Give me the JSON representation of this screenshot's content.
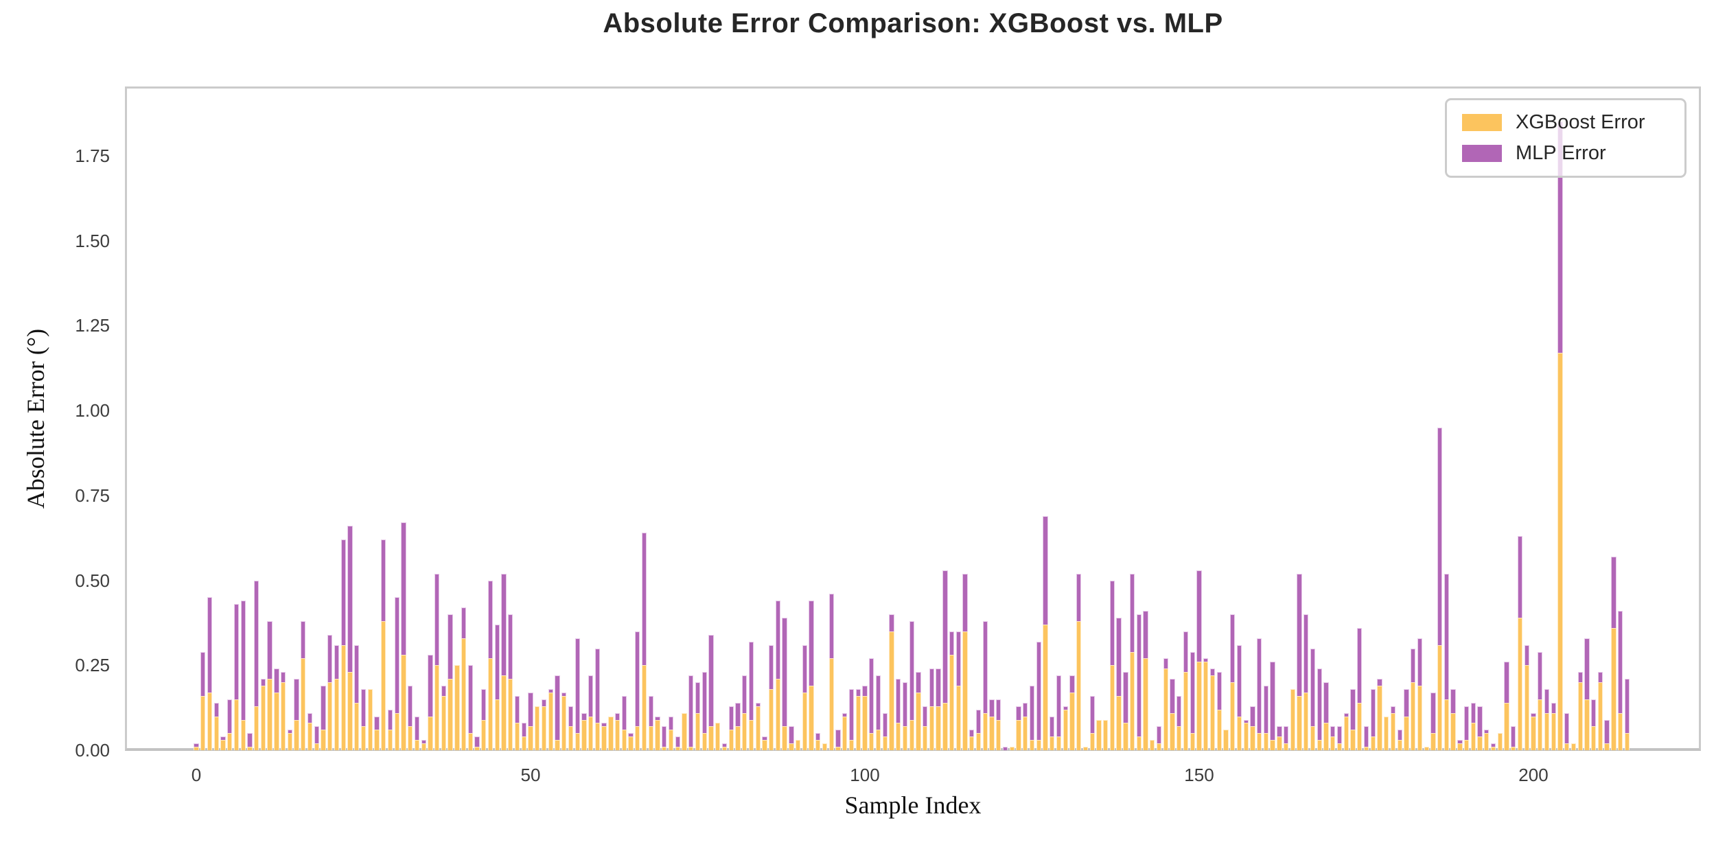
{
  "chart_data": {
    "type": "bar",
    "title": "Absolute Error Comparison: XGBoost vs. MLP",
    "xlabel": "Sample Index",
    "ylabel": "Absolute Error (°)",
    "grid": false,
    "legend_position": "upper right",
    "n_samples": 215,
    "x_start": 0,
    "xlim": [
      -11,
      225
    ],
    "ylim": [
      0,
      1.95
    ],
    "xticks": [
      0,
      50,
      100,
      150,
      200
    ],
    "yticks": [
      0.0,
      0.25,
      0.5,
      0.75,
      1.0,
      1.25,
      1.5,
      1.75
    ],
    "ytick_labels": [
      "0.00",
      "0.25",
      "0.50",
      "0.75",
      "1.00",
      "1.25",
      "1.50",
      "1.75"
    ],
    "bar_style": "overlaid (MLP behind, XGBoost in front)",
    "series": [
      {
        "name": "XGBoost Error",
        "color": "#fcc45e",
        "edge_color": "#ffeac3",
        "values": [
          0.01,
          0.16,
          0.17,
          0.1,
          0.03,
          0.05,
          0.15,
          0.09,
          0.01,
          0.13,
          0.19,
          0.21,
          0.17,
          0.2,
          0.05,
          0.09,
          0.27,
          0.08,
          0.02,
          0.06,
          0.2,
          0.21,
          0.31,
          0.23,
          0.14,
          0.07,
          0.18,
          0.06,
          0.38,
          0.06,
          0.11,
          0.28,
          0.07,
          0.03,
          0.02,
          0.1,
          0.25,
          0.16,
          0.21,
          0.25,
          0.33,
          0.05,
          0.01,
          0.09,
          0.27,
          0.15,
          0.22,
          0.21,
          0.08,
          0.04,
          0.07,
          0.13,
          0.13,
          0.17,
          0.03,
          0.16,
          0.07,
          0.05,
          0.09,
          0.1,
          0.08,
          0.07,
          0.1,
          0.09,
          0.06,
          0.04,
          0.07,
          0.25,
          0.07,
          0.09,
          0.01,
          0.06,
          0.01,
          0.11,
          0.01,
          0.11,
          0.05,
          0.07,
          0.08,
          0.01,
          0.06,
          0.07,
          0.11,
          0.09,
          0.13,
          0.03,
          0.18,
          0.21,
          0.07,
          0.02,
          0.03,
          0.17,
          0.19,
          0.03,
          0.02,
          0.27,
          0.01,
          0.1,
          0.03,
          0.16,
          0.16,
          0.05,
          0.06,
          0.04,
          0.35,
          0.08,
          0.07,
          0.09,
          0.17,
          0.07,
          0.13,
          0.13,
          0.14,
          0.28,
          0.19,
          0.35,
          0.04,
          0.05,
          0.11,
          0.1,
          0.09,
          0.0,
          0.01,
          0.09,
          0.1,
          0.03,
          0.03,
          0.37,
          0.04,
          0.04,
          0.12,
          0.17,
          0.38,
          0.01,
          0.05,
          0.09,
          0.09,
          0.25,
          0.16,
          0.08,
          0.29,
          0.04,
          0.27,
          0.03,
          0.02,
          0.24,
          0.11,
          0.07,
          0.23,
          0.05,
          0.26,
          0.26,
          0.22,
          0.12,
          0.06,
          0.2,
          0.1,
          0.08,
          0.07,
          0.05,
          0.05,
          0.03,
          0.04,
          0.02,
          0.18,
          0.16,
          0.17,
          0.07,
          0.03,
          0.08,
          0.04,
          0.02,
          0.1,
          0.06,
          0.14,
          0.01,
          0.04,
          0.19,
          0.1,
          0.11,
          0.03,
          0.1,
          0.2,
          0.19,
          0.01,
          0.05,
          0.31,
          0.15,
          0.11,
          0.02,
          0.03,
          0.08,
          0.04,
          0.05,
          0.01,
          0.05,
          0.14,
          0.01,
          0.39,
          0.25,
          0.1,
          0.15,
          0.11,
          0.11,
          1.17,
          0.02,
          0.02,
          0.2,
          0.15,
          0.07,
          0.2,
          0.02,
          0.36,
          0.11,
          0.05
        ]
      },
      {
        "name": "MLP Error",
        "color": "#b166b6",
        "edge_color": "#e7c9e9",
        "values": [
          0.02,
          0.29,
          0.45,
          0.14,
          0.04,
          0.15,
          0.43,
          0.44,
          0.05,
          0.5,
          0.21,
          0.38,
          0.24,
          0.23,
          0.06,
          0.21,
          0.38,
          0.11,
          0.07,
          0.19,
          0.34,
          0.31,
          0.62,
          0.66,
          0.31,
          0.18,
          0.17,
          0.1,
          0.62,
          0.12,
          0.45,
          0.67,
          0.19,
          0.1,
          0.03,
          0.28,
          0.52,
          0.19,
          0.4,
          0.24,
          0.42,
          0.25,
          0.04,
          0.18,
          0.5,
          0.37,
          0.52,
          0.4,
          0.16,
          0.08,
          0.17,
          0.12,
          0.15,
          0.18,
          0.22,
          0.17,
          0.13,
          0.33,
          0.11,
          0.22,
          0.3,
          0.08,
          0.1,
          0.11,
          0.16,
          0.05,
          0.35,
          0.64,
          0.16,
          0.1,
          0.07,
          0.1,
          0.04,
          0.11,
          0.22,
          0.2,
          0.23,
          0.34,
          0.07,
          0.02,
          0.13,
          0.14,
          0.22,
          0.32,
          0.14,
          0.04,
          0.31,
          0.44,
          0.39,
          0.07,
          0.02,
          0.31,
          0.44,
          0.05,
          0.02,
          0.46,
          0.06,
          0.11,
          0.18,
          0.18,
          0.19,
          0.27,
          0.22,
          0.11,
          0.4,
          0.21,
          0.2,
          0.38,
          0.23,
          0.13,
          0.24,
          0.24,
          0.53,
          0.35,
          0.35,
          0.52,
          0.06,
          0.12,
          0.38,
          0.15,
          0.15,
          0.01,
          0.01,
          0.13,
          0.14,
          0.19,
          0.32,
          0.69,
          0.1,
          0.22,
          0.13,
          0.22,
          0.52,
          0.01,
          0.16,
          0.08,
          0.09,
          0.5,
          0.39,
          0.23,
          0.52,
          0.4,
          0.41,
          0.03,
          0.07,
          0.27,
          0.21,
          0.16,
          0.35,
          0.29,
          0.53,
          0.27,
          0.24,
          0.23,
          0.06,
          0.4,
          0.31,
          0.09,
          0.13,
          0.33,
          0.19,
          0.26,
          0.07,
          0.07,
          0.18,
          0.52,
          0.4,
          0.3,
          0.24,
          0.2,
          0.07,
          0.07,
          0.11,
          0.18,
          0.36,
          0.07,
          0.18,
          0.21,
          0.1,
          0.13,
          0.06,
          0.18,
          0.3,
          0.33,
          0.01,
          0.17,
          0.95,
          0.52,
          0.18,
          0.03,
          0.13,
          0.14,
          0.13,
          0.06,
          0.02,
          0.05,
          0.26,
          0.07,
          0.63,
          0.31,
          0.11,
          0.29,
          0.18,
          0.14,
          1.85,
          0.11,
          0.02,
          0.23,
          0.33,
          0.15,
          0.23,
          0.09,
          0.57,
          0.41,
          0.21
        ]
      }
    ]
  },
  "colors": {
    "background": "#ffffff",
    "spine": "#cbcbcb",
    "title_text": "#262626",
    "tick_text": "#3c3c3c",
    "axis_label_text": "#111111",
    "legend_border": "#cccccc"
  }
}
